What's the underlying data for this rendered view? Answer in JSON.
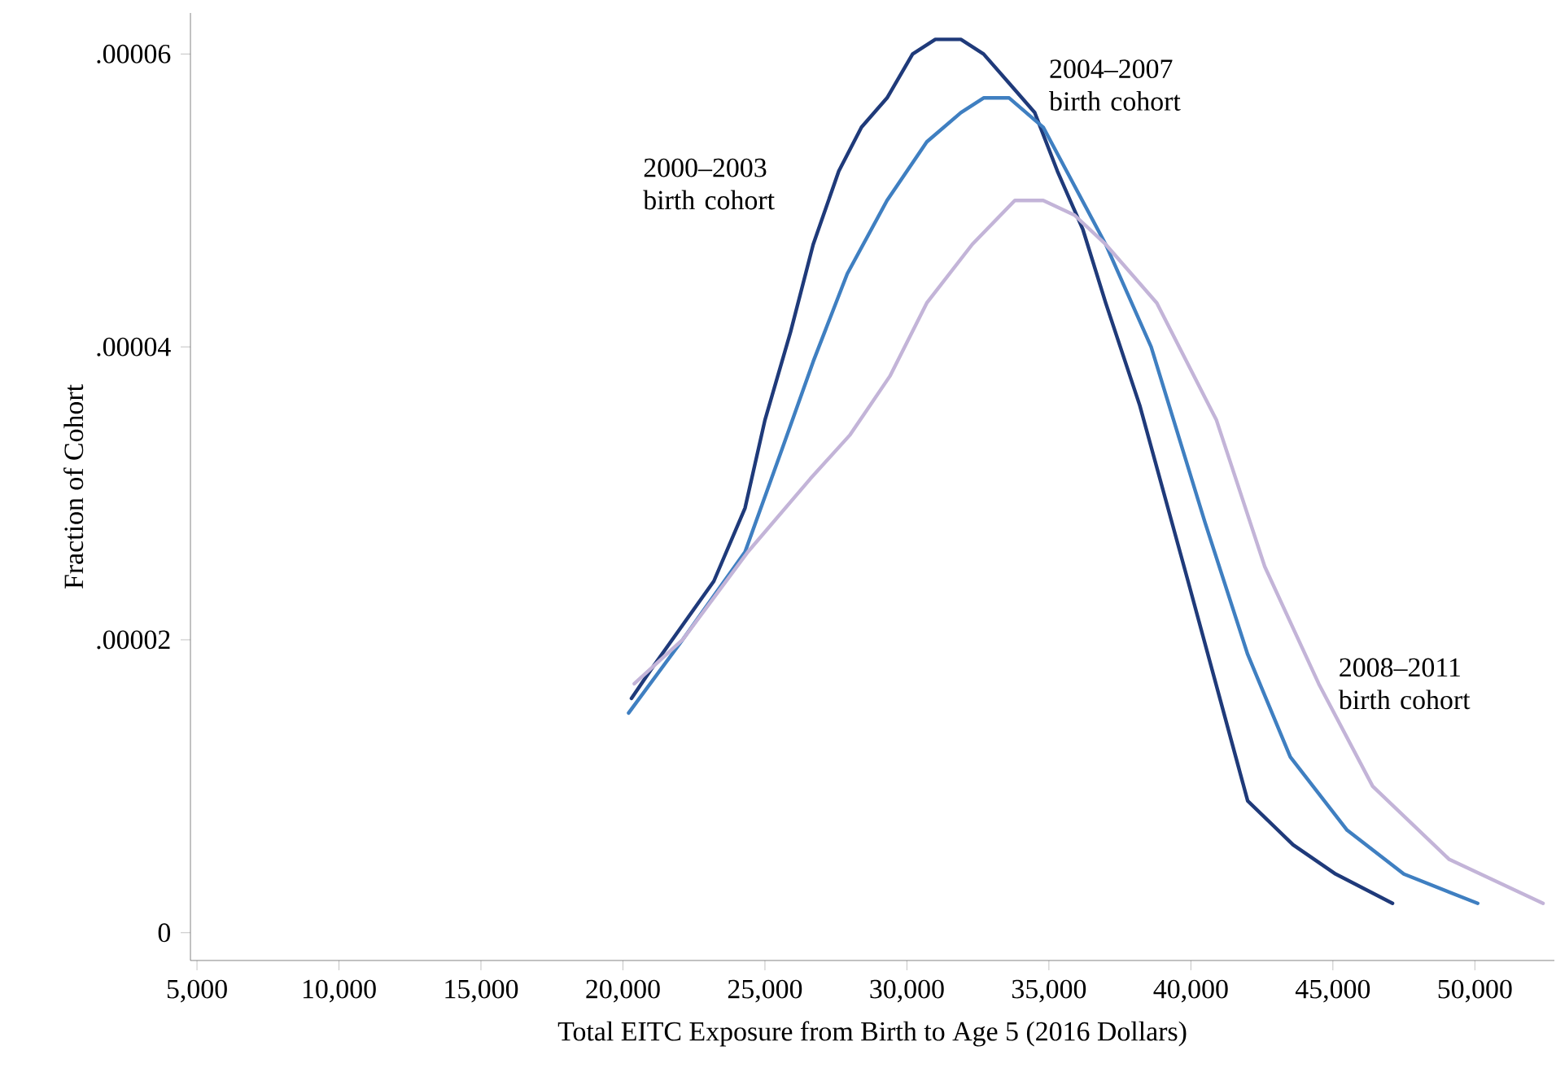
{
  "chart_data": {
    "type": "line",
    "xlabel": "Total EITC Exposure from Birth to Age 5 (2016 Dollars)",
    "ylabel": "Fraction of Cohort",
    "xlim": [
      4770,
      52800
    ],
    "ylim": [
      -1.9e-06,
      6.28e-05
    ],
    "xticks": [
      {
        "value": 5000,
        "label": "5,000"
      },
      {
        "value": 10000,
        "label": "10,000"
      },
      {
        "value": 15000,
        "label": "15,000"
      },
      {
        "value": 20000,
        "label": "20,000"
      },
      {
        "value": 25000,
        "label": "25,000"
      },
      {
        "value": 30000,
        "label": "30,000"
      },
      {
        "value": 35000,
        "label": "35,000"
      },
      {
        "value": 40000,
        "label": "40,000"
      },
      {
        "value": 45000,
        "label": "45,000"
      },
      {
        "value": 50000,
        "label": "50,000"
      }
    ],
    "yticks": [
      0,
      {
        "value": 2e-05,
        "label": ".00002"
      },
      {
        "value": 4e-05,
        "label": ".00004"
      },
      {
        "value": 6e-05,
        "label": ".00006"
      }
    ],
    "grid": false,
    "legend": false,
    "marker": "none",
    "line_style": "solid",
    "series": [
      {
        "name": "2000–2003 birth cohort",
        "color": "#1f3a7a",
        "x": [
          20300,
          21000,
          22100,
          23200,
          24300,
          25000,
          25900,
          26700,
          27600,
          28400,
          29300,
          30200,
          31000,
          31900,
          32700,
          33600,
          34500,
          35300,
          36200,
          37000,
          38200,
          39900,
          42000,
          43600,
          45100,
          47100
        ],
        "values": [
          1.6e-05,
          1.8e-05,
          2.1e-05,
          2.4e-05,
          2.9e-05,
          3.5e-05,
          4.1e-05,
          4.7e-05,
          5.2e-05,
          5.5e-05,
          5.7e-05,
          6e-05,
          6.1e-05,
          6.1e-05,
          6e-05,
          5.8e-05,
          5.6e-05,
          5.2e-05,
          4.8e-05,
          4.3e-05,
          3.6e-05,
          2.4e-05,
          9e-06,
          6e-06,
          4e-06,
          2e-06
        ]
      },
      {
        "name": "2004–2007 birth cohort",
        "color": "#3f7fc1",
        "x": [
          20200,
          22100,
          24300,
          25600,
          26700,
          27900,
          29300,
          30700,
          31900,
          32700,
          33600,
          34800,
          35900,
          37000,
          38600,
          40500,
          42000,
          43500,
          45500,
          47500,
          50100
        ],
        "values": [
          1.5e-05,
          2e-05,
          2.6e-05,
          3.3e-05,
          3.9e-05,
          4.5e-05,
          5e-05,
          5.4e-05,
          5.6e-05,
          5.7e-05,
          5.7e-05,
          5.5e-05,
          5.1e-05,
          4.7e-05,
          4e-05,
          2.8e-05,
          1.9e-05,
          1.2e-05,
          7e-06,
          4e-06,
          2e-06
        ]
      },
      {
        "name": "2008–2011 birth cohort",
        "color": "#c3b4d8",
        "x": [
          20400,
          22100,
          24400,
          26600,
          28000,
          29400,
          30700,
          32300,
          33800,
          34800,
          35900,
          37000,
          38800,
          40900,
          42600,
          44500,
          46400,
          49100,
          52400
        ],
        "values": [
          1.7e-05,
          2e-05,
          2.6e-05,
          3.1e-05,
          3.4e-05,
          3.8e-05,
          4.3e-05,
          4.7e-05,
          5e-05,
          5e-05,
          4.9e-05,
          4.7e-05,
          4.3e-05,
          3.5e-05,
          2.5e-05,
          1.7e-05,
          1e-05,
          5e-06,
          2e-06
        ]
      }
    ]
  }
}
